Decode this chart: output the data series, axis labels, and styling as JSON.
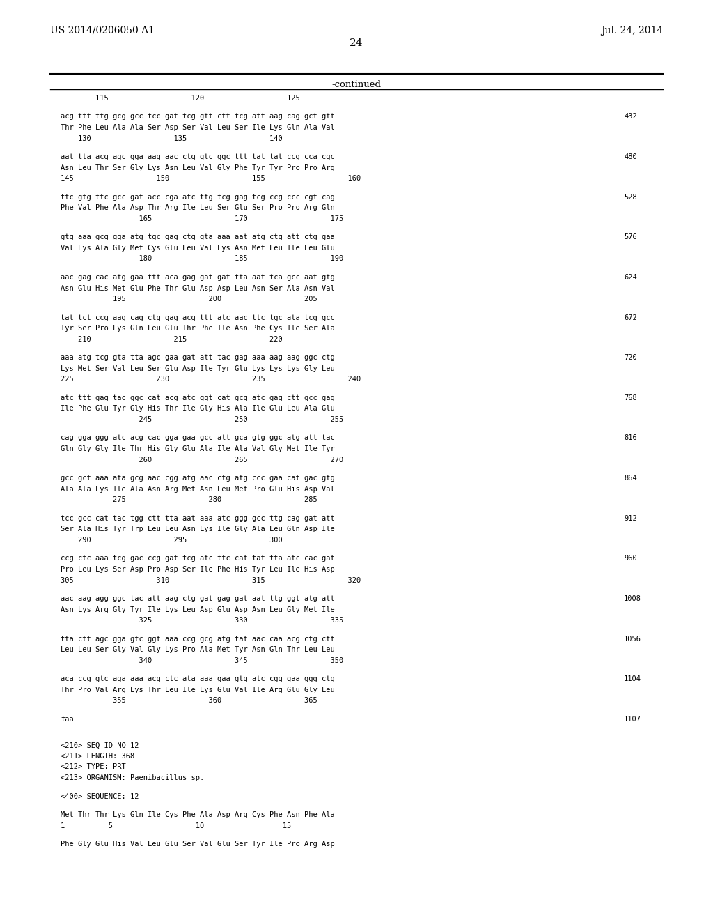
{
  "header_left": "US 2014/0206050 A1",
  "header_right": "Jul. 24, 2014",
  "page_number": "24",
  "continued_label": "-continued",
  "background_color": "#ffffff",
  "text_color": "#000000",
  "font_family": "monospace",
  "content": [
    {
      "type": "ruler_numbers",
      "text": "        115                   120                   125"
    },
    {
      "type": "spacer"
    },
    {
      "type": "dna",
      "text": "acg ttt ttg gcg gcc tcc gat tcg gtt ctt tcg att aag cag gct gtt",
      "num": "432"
    },
    {
      "type": "aa",
      "text": "Thr Phe Leu Ala Ala Ser Asp Ser Val Leu Ser Ile Lys Gln Ala Val"
    },
    {
      "type": "pos",
      "text": "    130                   135                   140"
    },
    {
      "type": "spacer"
    },
    {
      "type": "dna",
      "text": "aat tta acg agc gga aag aac ctg gtc ggc ttt tat tat ccg cca cgc",
      "num": "480"
    },
    {
      "type": "aa",
      "text": "Asn Leu Thr Ser Gly Lys Asn Leu Val Gly Phe Tyr Tyr Pro Pro Arg"
    },
    {
      "type": "pos",
      "text": "145                   150                   155                   160"
    },
    {
      "type": "spacer"
    },
    {
      "type": "dna",
      "text": "ttc gtg ttc gcc gat acc cga atc ttg tcg gag tcg ccg ccc cgt cag",
      "num": "528"
    },
    {
      "type": "aa",
      "text": "Phe Val Phe Ala Asp Thr Arg Ile Leu Ser Glu Ser Pro Pro Arg Gln"
    },
    {
      "type": "pos",
      "text": "                  165                   170                   175"
    },
    {
      "type": "spacer"
    },
    {
      "type": "dna",
      "text": "gtg aaa gcg gga atg tgc gag ctg gta aaa aat atg ctg att ctg gaa",
      "num": "576"
    },
    {
      "type": "aa",
      "text": "Val Lys Ala Gly Met Cys Glu Leu Val Lys Asn Met Leu Ile Leu Glu"
    },
    {
      "type": "pos",
      "text": "                  180                   185                   190"
    },
    {
      "type": "spacer"
    },
    {
      "type": "dna",
      "text": "aac gag cac atg gaa ttt aca gag gat gat tta aat tca gcc aat gtg",
      "num": "624"
    },
    {
      "type": "aa",
      "text": "Asn Glu His Met Glu Phe Thr Glu Asp Asp Leu Asn Ser Ala Asn Val"
    },
    {
      "type": "pos",
      "text": "            195                   200                   205"
    },
    {
      "type": "spacer"
    },
    {
      "type": "dna",
      "text": "tat tct ccg aag cag ctg gag acg ttt atc aac ttc tgc ata tcg gcc",
      "num": "672"
    },
    {
      "type": "aa",
      "text": "Tyr Ser Pro Lys Gln Leu Glu Thr Phe Ile Asn Phe Cys Ile Ser Ala"
    },
    {
      "type": "pos",
      "text": "    210                   215                   220"
    },
    {
      "type": "spacer"
    },
    {
      "type": "dna",
      "text": "aaa atg tcg gta tta agc gaa gat att tac gag aaa aag aag ggc ctg",
      "num": "720"
    },
    {
      "type": "aa",
      "text": "Lys Met Ser Val Leu Ser Glu Asp Ile Tyr Glu Lys Lys Lys Gly Leu"
    },
    {
      "type": "pos",
      "text": "225                   230                   235                   240"
    },
    {
      "type": "spacer"
    },
    {
      "type": "dna",
      "text": "atc ttt gag tac ggc cat acg atc ggt cat gcg atc gag ctt gcc gag",
      "num": "768"
    },
    {
      "type": "aa",
      "text": "Ile Phe Glu Tyr Gly His Thr Ile Gly His Ala Ile Glu Leu Ala Glu"
    },
    {
      "type": "pos",
      "text": "                  245                   250                   255"
    },
    {
      "type": "spacer"
    },
    {
      "type": "dna",
      "text": "cag gga ggg atc acg cac gga gaa gcc att gca gtg ggc atg att tac",
      "num": "816"
    },
    {
      "type": "aa",
      "text": "Gln Gly Gly Ile Thr His Gly Glu Ala Ile Ala Val Gly Met Ile Tyr"
    },
    {
      "type": "pos",
      "text": "                  260                   265                   270"
    },
    {
      "type": "spacer"
    },
    {
      "type": "dna",
      "text": "gcc gct aaa ata gcg aac cgg atg aac ctg atg ccc gaa cat gac gtg",
      "num": "864"
    },
    {
      "type": "aa",
      "text": "Ala Ala Lys Ile Ala Asn Arg Met Asn Leu Met Pro Glu His Asp Val"
    },
    {
      "type": "pos",
      "text": "            275                   280                   285"
    },
    {
      "type": "spacer"
    },
    {
      "type": "dna",
      "text": "tcc gcc cat tac tgg ctt tta aat aaa atc ggg gcc ttg cag gat att",
      "num": "912"
    },
    {
      "type": "aa",
      "text": "Ser Ala His Tyr Trp Leu Leu Asn Lys Ile Gly Ala Leu Gln Asp Ile"
    },
    {
      "type": "pos",
      "text": "    290                   295                   300"
    },
    {
      "type": "spacer"
    },
    {
      "type": "dna",
      "text": "ccg ctc aaa tcg gac ccg gat tcg atc ttc cat tat tta atc cac gat",
      "num": "960"
    },
    {
      "type": "aa",
      "text": "Pro Leu Lys Ser Asp Pro Asp Ser Ile Phe His Tyr Leu Ile His Asp"
    },
    {
      "type": "pos",
      "text": "305                   310                   315                   320"
    },
    {
      "type": "spacer"
    },
    {
      "type": "dna",
      "text": "aac aag agg ggc tac att aag ctg gat gag gat aat ttg ggt atg att",
      "num": "1008"
    },
    {
      "type": "aa",
      "text": "Asn Lys Arg Gly Tyr Ile Lys Leu Asp Glu Asp Asn Leu Gly Met Ile"
    },
    {
      "type": "pos",
      "text": "                  325                   330                   335"
    },
    {
      "type": "spacer"
    },
    {
      "type": "dna",
      "text": "tta ctt agc gga gtc ggt aaa ccg gcg atg tat aac caa acg ctg ctt",
      "num": "1056"
    },
    {
      "type": "aa",
      "text": "Leu Leu Ser Gly Val Gly Lys Pro Ala Met Tyr Asn Gln Thr Leu Leu"
    },
    {
      "type": "pos",
      "text": "                  340                   345                   350"
    },
    {
      "type": "spacer"
    },
    {
      "type": "dna",
      "text": "aca ccg gtc aga aaa acg ctc ata aaa gaa gtg atc cgg gaa ggg ctg",
      "num": "1104"
    },
    {
      "type": "aa",
      "text": "Thr Pro Val Arg Lys Thr Leu Ile Lys Glu Val Ile Arg Glu Gly Leu"
    },
    {
      "type": "pos",
      "text": "            355                   360                   365"
    },
    {
      "type": "spacer"
    },
    {
      "type": "dna_only",
      "text": "taa",
      "num": "1107"
    },
    {
      "type": "spacer"
    },
    {
      "type": "spacer"
    },
    {
      "type": "meta",
      "text": "<210> SEQ ID NO 12"
    },
    {
      "type": "meta",
      "text": "<211> LENGTH: 368"
    },
    {
      "type": "meta",
      "text": "<212> TYPE: PRT"
    },
    {
      "type": "meta",
      "text": "<213> ORGANISM: Paenibacillus sp."
    },
    {
      "type": "spacer"
    },
    {
      "type": "meta",
      "text": "<400> SEQUENCE: 12"
    },
    {
      "type": "spacer"
    },
    {
      "type": "aa_seq",
      "text": "Met Thr Thr Lys Gln Ile Cys Phe Ala Asp Arg Cys Phe Asn Phe Ala",
      "pos": "1          5                   10                  15"
    },
    {
      "type": "spacer"
    },
    {
      "type": "aa_cont",
      "text": "Phe Gly Glu His Val Leu Glu Ser Val Glu Ser Tyr Ile Pro Arg Asp"
    }
  ]
}
